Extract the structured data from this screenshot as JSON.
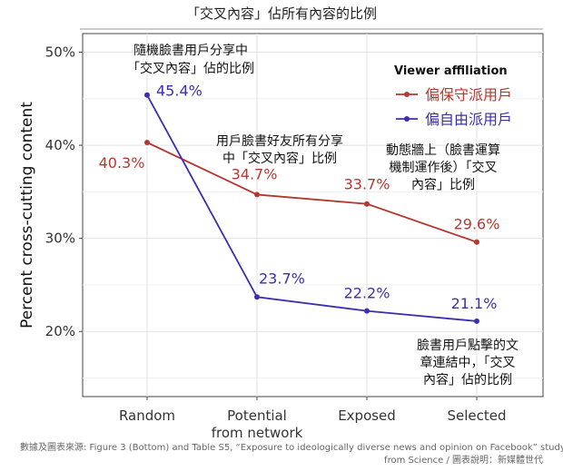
{
  "title": "「交叉內容」佔所有內容的比例",
  "chart_data": {
    "type": "line",
    "categories": [
      "Random",
      "Potential\nfrom network",
      "Exposed",
      "Selected"
    ],
    "ylabel": "Percent cross-cutting content",
    "ylim": [
      13,
      52
    ],
    "yticks": [
      20,
      30,
      40,
      50
    ],
    "ytick_labels": [
      "20%",
      "30%",
      "40%",
      "50%"
    ],
    "grid": true,
    "legend_title": "Viewer affiliation",
    "legend_position": "top-right",
    "series": [
      {
        "name": "偏保守派用戶",
        "color": "#b5372f",
        "values": [
          40.3,
          34.7,
          33.7,
          29.6
        ],
        "labels": [
          "40.3%",
          "34.7%",
          "33.7%",
          "29.6%"
        ]
      },
      {
        "name": "偏自由派用戶",
        "color": "#3b2fae",
        "values": [
          45.4,
          23.7,
          22.2,
          21.1
        ],
        "labels": [
          "45.4%",
          "23.7%",
          "22.2%",
          "21.1%"
        ]
      }
    ],
    "annotations": [
      {
        "id": "random",
        "lines": [
          "隨機臉書用戶分享中",
          "「交叉內容」佔的比例"
        ]
      },
      {
        "id": "potential",
        "lines": [
          "用戶臉書好友所有分享",
          "中「交叉內容」比例"
        ]
      },
      {
        "id": "exposed",
        "lines": [
          "動態牆上（臉書運算",
          "機制運作後）「交叉",
          "內容」比例"
        ]
      },
      {
        "id": "selected",
        "lines": [
          "臉書用戶點擊的文",
          "章連結中，「交叉",
          "內容」佔的比例"
        ]
      }
    ]
  },
  "footer": {
    "line1": "數據及圖表來源: Figure 3 (Bottom) and Table S5, “Exposure to ideologically diverse news and opinion on Facebook” study",
    "line2": "from Science / 圖表說明：新媒體世代"
  }
}
